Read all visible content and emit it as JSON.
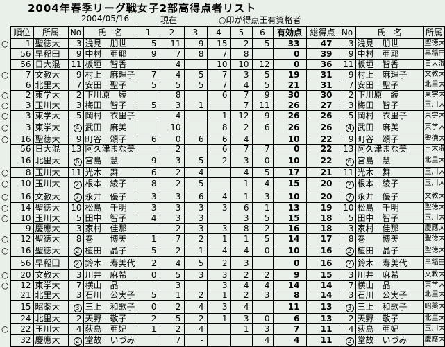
{
  "title": "2004年春季リーグ戦女子2部高得点者リスト",
  "subtitle": {
    "date": "2004/05/16",
    "asof": "現在",
    "note": "○印が得点王有資格者"
  },
  "legend_mark": "○",
  "colors": {
    "background": "#e9efe9",
    "border": "#000000",
    "text": "#000000"
  },
  "table": {
    "headers": {
      "rank": "順位",
      "team": "所属",
      "no": "No",
      "name": "氏　名",
      "games": [
        "1",
        "2",
        "3",
        "4",
        "5",
        "6"
      ],
      "valid": "有効点",
      "total": "総得点",
      "no_right": "No",
      "name_right": "氏　名",
      "team_right": "所属"
    },
    "rows": [
      {
        "q": true,
        "rank": "1",
        "team": "聖徳大",
        "no": "3",
        "no_circled": false,
        "name": "浅見　朋世",
        "g": [
          "5",
          "11",
          "9",
          "15",
          "2",
          "5"
        ],
        "valid": "33",
        "total": "47"
      },
      {
        "q": false,
        "rank": "56",
        "team": "早稲田",
        "no": "9",
        "no_circled": false,
        "name": "中村　亜耶",
        "g": [
          "9",
          "7",
          "8",
          "7",
          "8",
          ""
        ],
        "valid": "0",
        "total": "39"
      },
      {
        "q": false,
        "rank": "56",
        "team": "日大混",
        "no": "11",
        "no_circled": false,
        "name": "板垣　智香",
        "g": [
          "",
          "4",
          "",
          "10",
          "10",
          "12"
        ],
        "valid": "0",
        "total": "36"
      },
      {
        "q": true,
        "rank": "7",
        "team": "文教大",
        "no": "9",
        "no_circled": false,
        "name": "村上　麻理子",
        "g": [
          "7",
          "4",
          "5",
          "7",
          "3",
          "5"
        ],
        "valid": "19",
        "total": "31"
      },
      {
        "q": false,
        "rank": "6",
        "team": "北里大",
        "no": "7",
        "no_circled": false,
        "name": "安田　聖子",
        "g": [
          "5",
          "5",
          "5",
          "7",
          "4",
          "5"
        ],
        "valid": "21",
        "total": "31"
      },
      {
        "q": true,
        "rank": "2",
        "team": "東学大",
        "no": "2",
        "no_circled": false,
        "name": "下川原　綾",
        "g": [
          "",
          "8",
          "",
          "6",
          "7",
          "9"
        ],
        "valid": "30",
        "total": "30"
      },
      {
        "q": true,
        "rank": "3",
        "team": "玉川大",
        "no": "3",
        "no_circled": false,
        "name": "梅田　智子",
        "g": [
          "5",
          "3",
          "1",
          "",
          "7",
          "11"
        ],
        "valid": "26",
        "total": "27"
      },
      {
        "q": true,
        "rank": "3",
        "team": "東学大",
        "no": "5",
        "no_circled": false,
        "name": "岡村　衣里子",
        "g": [
          "",
          "4",
          "",
          "1",
          "12",
          "9"
        ],
        "valid": "26",
        "total": "26"
      },
      {
        "q": true,
        "rank": "3",
        "team": "東学大",
        "no": "4",
        "no_circled": true,
        "name": "武田　麻美",
        "g": [
          "",
          "10",
          "",
          "8",
          "2",
          "6"
        ],
        "valid": "26",
        "total": "26"
      },
      {
        "q": true,
        "rank": "16",
        "team": "聖徳大",
        "no": "9",
        "no_circled": false,
        "name": "町谷　頌子",
        "g": [
          "6",
          "0",
          "6",
          "6",
          "4",
          ""
        ],
        "valid": "10",
        "total": "22"
      },
      {
        "q": false,
        "rank": "56",
        "team": "日大混",
        "no": "13",
        "no_circled": false,
        "name": "阿久津まな美",
        "g": [
          "",
          "2",
          "",
          "6",
          "7",
          "7"
        ],
        "valid": "0",
        "total": "22"
      },
      {
        "q": false,
        "rank": "16",
        "team": "北里大",
        "no": "6",
        "no_circled": true,
        "name": "宮島　慧",
        "g": [
          "9",
          "3",
          "5",
          "2",
          "3",
          "0"
        ],
        "valid": "10",
        "total": "22"
      },
      {
        "q": true,
        "rank": "8",
        "team": "玉川大",
        "no": "11",
        "no_circled": false,
        "name": "光木　舞",
        "g": [
          "6",
          "2",
          "4",
          "",
          "4",
          "5"
        ],
        "valid": "17",
        "total": "21"
      },
      {
        "q": true,
        "rank": "10",
        "team": "玉川大",
        "no": "2",
        "no_circled": true,
        "name": "根本　綾子",
        "g": [
          "8",
          "2",
          "5",
          "",
          "1",
          "4"
        ],
        "valid": "15",
        "total": "20"
      },
      {
        "q": true,
        "rank": "16",
        "team": "文教大",
        "no": "7",
        "no_circled": true,
        "name": "永井　優子",
        "g": [
          "3",
          "3",
          "6",
          "4",
          "1",
          "3"
        ],
        "valid": "10",
        "total": "20"
      },
      {
        "q": true,
        "rank": "14",
        "team": "聖徳大",
        "no": "10",
        "no_circled": false,
        "name": "松島　千明",
        "g": [
          "3",
          "3",
          "3",
          "3",
          "6",
          "1"
        ],
        "valid": "13",
        "total": "19"
      },
      {
        "q": true,
        "rank": "10",
        "team": "玉川大",
        "no": "5",
        "no_circled": false,
        "name": "田中　智子",
        "g": [
          "4",
          "3",
          "3",
          "",
          "3",
          "5"
        ],
        "valid": "15",
        "total": "18"
      },
      {
        "q": false,
        "rank": "9",
        "team": "慶應大",
        "no": "3",
        "no_circled": false,
        "name": "家村　佳那",
        "g": [
          "",
          "2",
          "3",
          "3",
          "8",
          "2"
        ],
        "valid": "16",
        "total": "18"
      },
      {
        "q": true,
        "rank": "12",
        "team": "聖徳大",
        "no": "8",
        "no_circled": false,
        "name": "巻　　博美",
        "g": [
          "1",
          "7",
          "2",
          "1",
          "1",
          "5"
        ],
        "valid": "14",
        "total": "17"
      },
      {
        "q": true,
        "rank": "16",
        "team": "聖徳大",
        "no": "2",
        "no_circled": true,
        "name": "植田　晶子",
        "g": [
          "5",
          "2",
          "1",
          "4",
          "4",
          "0"
        ],
        "valid": "10",
        "total": "16"
      },
      {
        "q": false,
        "rank": "56",
        "team": "早稲田",
        "no": "2",
        "no_circled": true,
        "name": "鈴木　寿美代",
        "g": [
          "2",
          "4",
          "5",
          "2",
          "3",
          ""
        ],
        "valid": "0",
        "total": "16"
      },
      {
        "q": true,
        "rank": "20",
        "team": "文教大",
        "no": "3",
        "no_circled": false,
        "name": "川井　麻希",
        "g": [
          "0",
          "5",
          "3",
          "3",
          "2",
          "2"
        ],
        "valid": "9",
        "total": "15"
      },
      {
        "q": true,
        "rank": "12",
        "team": "東学大",
        "no": "7",
        "no_circled": false,
        "name": "横山　晶",
        "g": [
          "",
          "3",
          "",
          "3",
          "4",
          "4"
        ],
        "valid": "14",
        "total": "14"
      },
      {
        "q": false,
        "rank": "21",
        "team": "北里大",
        "no": "3",
        "no_circled": false,
        "name": "石川　公実子",
        "g": [
          "5",
          "1",
          "2",
          "1",
          "2",
          "3"
        ],
        "valid": "8",
        "total": "14"
      },
      {
        "q": false,
        "rank": "15",
        "team": "昭薬大",
        "no": "3",
        "no_circled": true,
        "name": "三上　和歌子",
        "g": [
          "0",
          "2",
          "4",
          "3",
          "4",
          ""
        ],
        "valid": "11",
        "total": "13"
      },
      {
        "q": false,
        "rank": "24",
        "team": "北里大",
        "no": "2",
        "no_circled": false,
        "name": "天野　敬子",
        "g": [
          "2",
          "5",
          "2",
          "1",
          "3",
          "0"
        ],
        "valid": "6",
        "total": "13"
      },
      {
        "q": true,
        "rank": "22",
        "team": "玉川大",
        "no": "4",
        "no_circled": false,
        "name": "荻島　亜妃",
        "g": [
          "1",
          "2",
          "4",
          "",
          "1",
          "3"
        ],
        "valid": "7",
        "total": "11"
      },
      {
        "q": false,
        "rank": "32",
        "team": "慶應大",
        "no": "2",
        "no_circled": true,
        "name": "堂故　いづみ",
        "g": [
          "",
          "7",
          "-",
          "",
          "",
          "4"
        ],
        "valid": "4",
        "total": "11"
      }
    ]
  }
}
